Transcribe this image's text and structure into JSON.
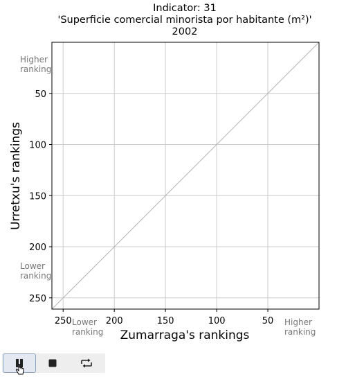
{
  "title": {
    "line1": "Indicator: 31",
    "line2": "'Superficie comercial minorista por habitante (m²)'",
    "line3": "2002"
  },
  "chart_data": {
    "type": "line",
    "title": "Indicator: 31 'Superficie comercial minorista por habitante (m²)' 2002",
    "xlabel": "Zumarraga's rankings",
    "ylabel": "Urretxu's rankings",
    "xlim": [
      261,
      0
    ],
    "ylim": [
      261,
      0
    ],
    "x_ticks": [
      250,
      200,
      150,
      100,
      50
    ],
    "y_ticks": [
      50,
      100,
      150,
      200,
      250
    ],
    "grid": true,
    "series": [
      {
        "x": [
          0,
          261
        ],
        "y": [
          0,
          261
        ],
        "color": "#b4b4b4"
      }
    ],
    "annotations": {
      "y_top": [
        "Higher",
        "ranking"
      ],
      "y_bottom": [
        "Lower",
        "ranking"
      ],
      "x_left": [
        "Lower",
        "ranking"
      ],
      "x_right": [
        "Higher",
        "ranking"
      ]
    }
  },
  "controls": {
    "pause": "pause-icon",
    "stop": "stop-icon",
    "repeat": "repeat-icon"
  }
}
